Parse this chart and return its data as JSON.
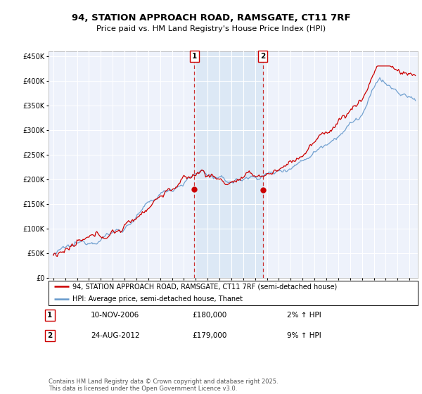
{
  "title": "94, STATION APPROACH ROAD, RAMSGATE, CT11 7RF",
  "subtitle": "Price paid vs. HM Land Registry's House Price Index (HPI)",
  "legend_line1": "94, STATION APPROACH ROAD, RAMSGATE, CT11 7RF (semi-detached house)",
  "legend_line2": "HPI: Average price, semi-detached house, Thanet",
  "annotation1_label": "1",
  "annotation1_date": "10-NOV-2006",
  "annotation1_price": "£180,000",
  "annotation1_hpi": "2% ↑ HPI",
  "annotation2_label": "2",
  "annotation2_date": "24-AUG-2012",
  "annotation2_price": "£179,000",
  "annotation2_hpi": "9% ↑ HPI",
  "footer": "Contains HM Land Registry data © Crown copyright and database right 2025.\nThis data is licensed under the Open Government Licence v3.0.",
  "price_color": "#cc0000",
  "hpi_color": "#6699cc",
  "shade_color": "#dce8f5",
  "background_color": "#eef2fb",
  "ylim": [
    0,
    460000
  ],
  "yticks": [
    0,
    50000,
    100000,
    150000,
    200000,
    250000,
    300000,
    350000,
    400000,
    450000
  ],
  "year_start": 1995,
  "year_end": 2025,
  "annotation1_year": 2006.87,
  "annotation2_year": 2012.65
}
